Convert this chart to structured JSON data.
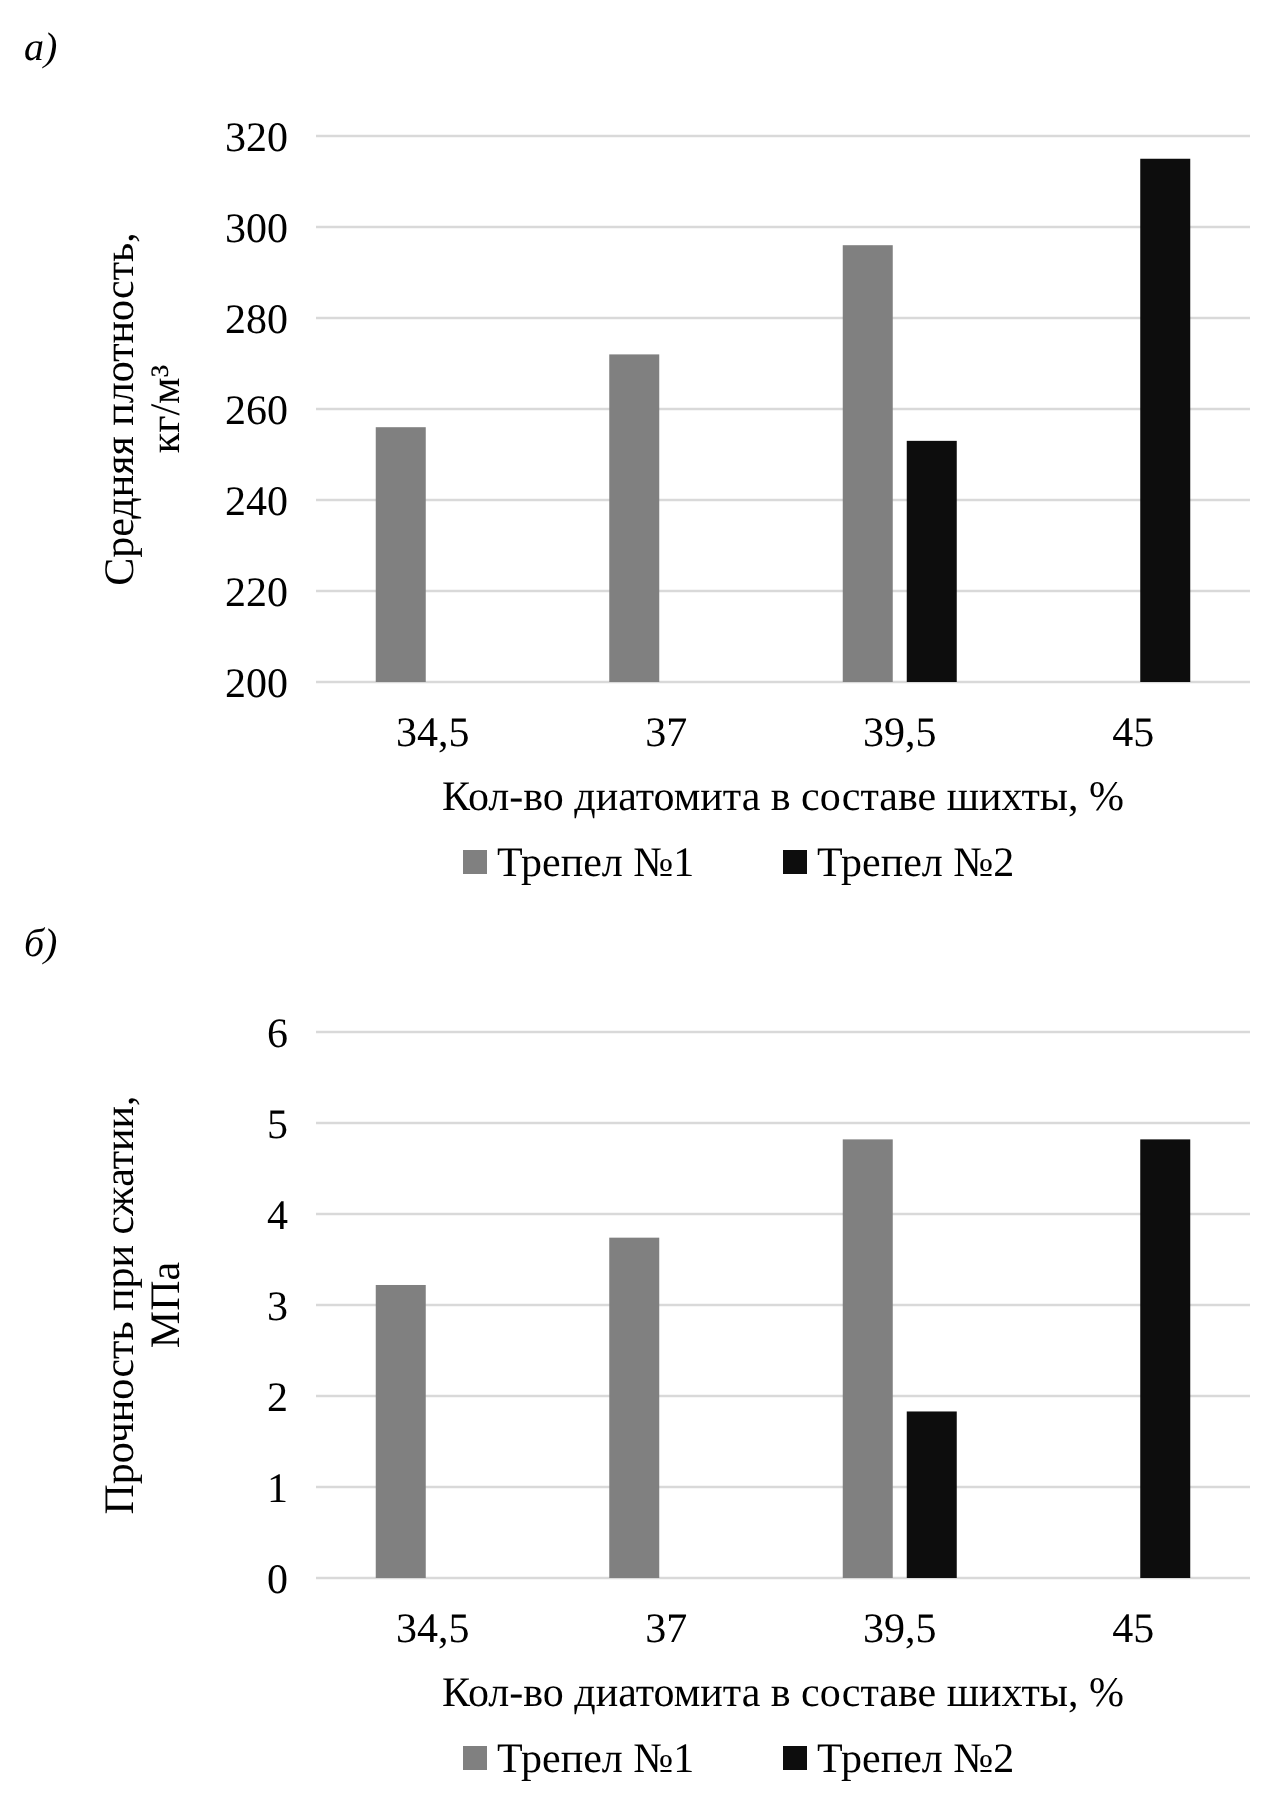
{
  "chart_data": [
    {
      "type": "bar",
      "title": "а)",
      "categories": [
        "34,5",
        "37",
        "39,5",
        "45"
      ],
      "xlabel": "Кол-во диатомита в составе шихты, %",
      "ylabel": "Средняя плотность,\nкг/м³",
      "ylim": [
        200,
        320
      ],
      "yticks": [
        200,
        220,
        240,
        260,
        280,
        300,
        320
      ],
      "grid": "y",
      "legend": "bottom",
      "series": [
        {
          "name": "Трепел №1",
          "color": "#808080",
          "values": [
            256,
            272,
            296,
            null
          ]
        },
        {
          "name": "Трепел №2",
          "color": "#0d0d0d",
          "values": [
            null,
            null,
            253,
            315
          ]
        }
      ]
    },
    {
      "type": "bar",
      "title": "б)",
      "categories": [
        "34,5",
        "37",
        "39,5",
        "45"
      ],
      "xlabel": "Кол-во диатомита в составе шихты, %",
      "ylabel": "Прочность при сжатии,\nМПа",
      "ylim": [
        0,
        6
      ],
      "yticks": [
        0,
        1,
        2,
        3,
        4,
        5,
        6
      ],
      "grid": "y",
      "legend": "bottom",
      "series": [
        {
          "name": "Трепел №1",
          "color": "#808080",
          "values": [
            3.22,
            3.74,
            4.82,
            null
          ]
        },
        {
          "name": "Трепел №2",
          "color": "#0d0d0d",
          "values": [
            null,
            null,
            1.83,
            4.82
          ]
        }
      ]
    }
  ]
}
